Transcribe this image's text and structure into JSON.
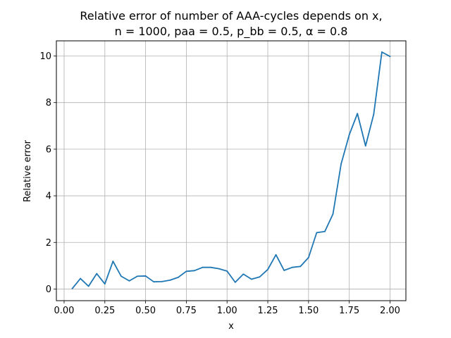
{
  "chart_data": {
    "type": "line",
    "title_line1": "Relative error of number of AAA-cycles depends on x,",
    "title_line2": "n = 1000, paa = 0.5, p_bb = 0.5, α = 0.8",
    "xlabel": "x",
    "ylabel": "Relative error",
    "xlim": [
      -0.0475,
      2.0975
    ],
    "ylim": [
      -0.5,
      10.65
    ],
    "grid": true,
    "x_ticks": [
      0.0,
      0.25,
      0.5,
      0.75,
      1.0,
      1.25,
      1.5,
      1.75,
      2.0
    ],
    "x_tick_labels": [
      "0.00",
      "0.25",
      "0.50",
      "0.75",
      "1.00",
      "1.25",
      "1.50",
      "1.75",
      "2.00"
    ],
    "y_ticks": [
      0,
      2,
      4,
      6,
      8,
      10
    ],
    "y_tick_labels": [
      "0",
      "2",
      "4",
      "6",
      "8",
      "10"
    ],
    "line_color": "#1f77b4",
    "series": [
      {
        "x": [
          0.05,
          0.1,
          0.15,
          0.2,
          0.25,
          0.3,
          0.35,
          0.4,
          0.45,
          0.5,
          0.55,
          0.6,
          0.65,
          0.7,
          0.75,
          0.8,
          0.85,
          0.9,
          0.95,
          1.0,
          1.05,
          1.1,
          1.15,
          1.2,
          1.25,
          1.3,
          1.35,
          1.4,
          1.45,
          1.5,
          1.55,
          1.6,
          1.65,
          1.7,
          1.75,
          1.8,
          1.85,
          1.9,
          1.95,
          2.0
        ],
        "values": [
          0.02,
          0.45,
          0.12,
          0.66,
          0.22,
          1.19,
          0.55,
          0.35,
          0.55,
          0.56,
          0.31,
          0.32,
          0.38,
          0.5,
          0.76,
          0.79,
          0.93,
          0.93,
          0.87,
          0.77,
          0.29,
          0.64,
          0.42,
          0.52,
          0.84,
          1.47,
          0.8,
          0.93,
          0.97,
          1.35,
          2.42,
          2.47,
          3.22,
          5.37,
          6.62,
          7.53,
          6.14,
          7.5,
          10.17,
          9.98
        ]
      }
    ]
  }
}
